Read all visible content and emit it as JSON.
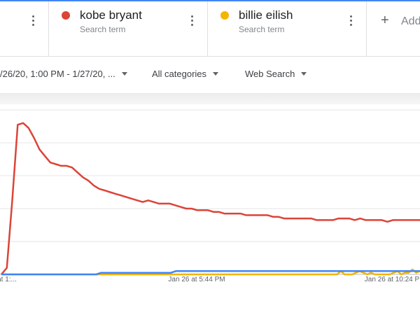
{
  "terms": [
    {
      "name": "",
      "sub": "",
      "color": "#4285f4"
    },
    {
      "name": "kobe bryant",
      "sub": "Search term",
      "color": "#db4437"
    },
    {
      "name": "billie eilish",
      "sub": "Search term",
      "color": "#f4b400"
    }
  ],
  "add": {
    "label": "Add"
  },
  "filters": {
    "date_range": "/26/20, 1:00 PM - 1/27/20, ...",
    "category": "All categories",
    "search_type": "Web Search"
  },
  "chart_data": {
    "type": "line",
    "ylim": [
      0,
      100
    ],
    "x_tick_labels": [
      "at 1:...",
      "Jan 26 at 5:44 PM",
      "Jan 26 at 10:24 P"
    ],
    "series": [
      {
        "name": "kobe bryant",
        "color": "#db4437",
        "values": [
          0,
          4,
          45,
          91,
          92,
          89,
          83,
          76,
          72,
          68,
          67,
          66,
          66,
          65,
          62,
          59,
          57,
          54,
          52,
          51,
          50,
          49,
          48,
          47,
          46,
          45,
          44,
          45,
          44,
          43,
          43,
          43,
          42,
          41,
          40,
          40,
          39,
          39,
          39,
          38,
          38,
          37,
          37,
          37,
          37,
          36,
          36,
          36,
          36,
          36,
          35,
          35,
          34,
          34,
          34,
          34,
          34,
          34,
          33,
          33,
          33,
          33,
          34,
          34,
          34,
          33,
          34,
          33,
          33,
          33,
          33,
          32,
          33,
          33,
          33,
          33,
          33,
          33
        ]
      },
      {
        "name": "",
        "color": "#4285f4",
        "values": [
          0,
          0,
          0,
          0,
          0,
          0,
          0,
          0,
          0,
          0,
          0,
          0,
          0,
          0,
          0,
          0,
          0,
          0,
          0,
          0,
          1,
          1,
          1,
          1,
          1,
          1,
          1,
          1,
          1,
          1,
          1,
          1,
          1,
          1,
          1,
          2,
          2,
          2,
          2,
          2,
          2,
          2,
          2,
          2,
          2,
          2,
          2,
          2,
          2,
          2,
          2,
          2,
          2,
          2,
          2,
          2,
          2,
          2,
          2,
          2,
          2,
          2,
          2,
          2,
          2,
          2,
          2,
          2,
          2,
          2,
          2,
          2,
          2,
          2,
          2,
          2,
          2,
          2,
          2,
          2,
          2,
          2,
          2,
          2,
          2
        ]
      },
      {
        "name": "billie eilish",
        "color": "#f4b400",
        "values": [
          0,
          0,
          0,
          0,
          0,
          0,
          0,
          0,
          0,
          0,
          0,
          0,
          0,
          0,
          0,
          0,
          0,
          0,
          0,
          0,
          0,
          0,
          0,
          0,
          0,
          0,
          0,
          0,
          0,
          0,
          0,
          0,
          0,
          0,
          0,
          0,
          0,
          0,
          0,
          0,
          0,
          0,
          0,
          0,
          0,
          0,
          0,
          0,
          0,
          0,
          0,
          0,
          0,
          0,
          0,
          0,
          0,
          0,
          0,
          0,
          0,
          0,
          0,
          0,
          0,
          0,
          0,
          0,
          0,
          0,
          0,
          0,
          0,
          0,
          0,
          0,
          0,
          0,
          0,
          0,
          0,
          0,
          0,
          0,
          0,
          0,
          0,
          0,
          0,
          0,
          2,
          0,
          0,
          0,
          1,
          2,
          1,
          0,
          1,
          0,
          0,
          0,
          0,
          0,
          1,
          2,
          0,
          1,
          1,
          3,
          1,
          2
        ]
      }
    ]
  }
}
